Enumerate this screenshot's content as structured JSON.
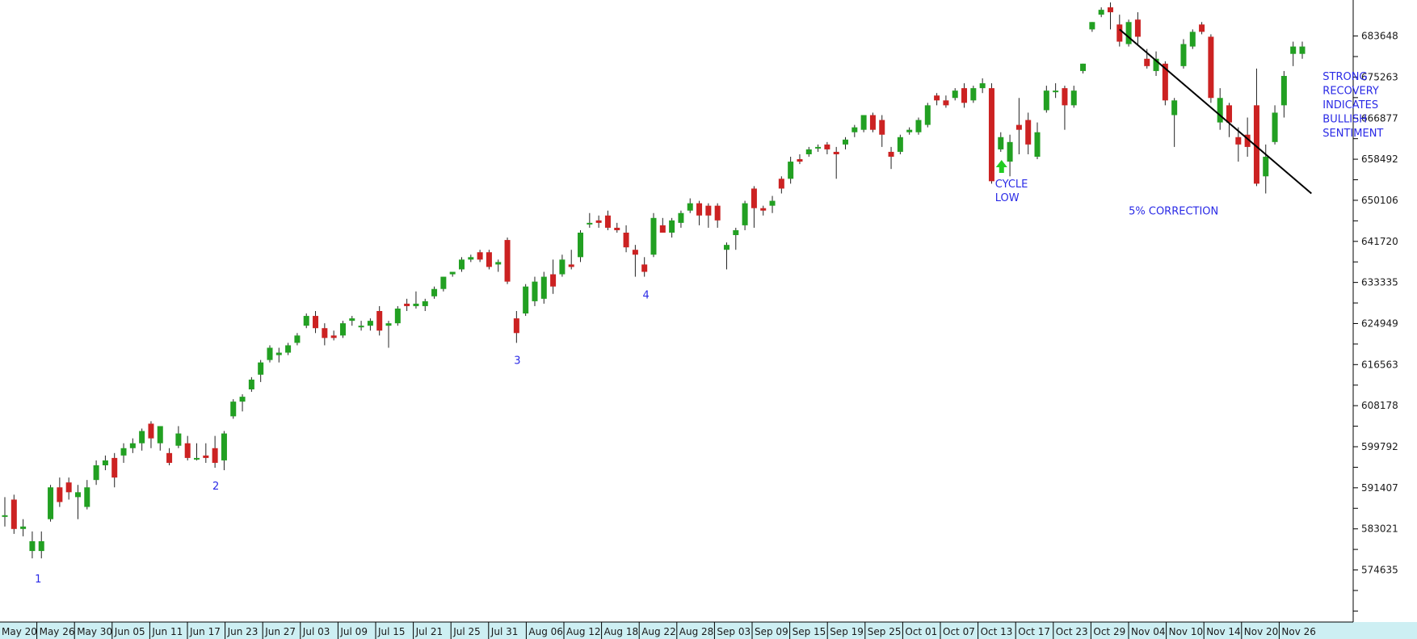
{
  "colors": {
    "background": "#ffffff",
    "up_candle": "#22a022",
    "down_candle": "#cc2222",
    "wick": "#222222",
    "axis": "#000000",
    "date_bar": "#cdeff3",
    "annotation_text": "#2a2ae6",
    "cycle_arrow": "#22cc22",
    "trendline": "#000000"
  },
  "chart_data": {
    "type": "candlestick",
    "title": "",
    "xlabel": "",
    "ylabel": "",
    "ylim": [
      564000,
      691000
    ],
    "y_ticks": [
      "683648",
      "675263",
      "666877",
      "658492",
      "650106",
      "641720",
      "633335",
      "624949",
      "616563",
      "608178",
      "599792",
      "591407",
      "583021",
      "574635"
    ],
    "x_ticks": [
      "May 20",
      "May 26",
      "May 30",
      "Jun 05",
      "Jun 11",
      "Jun 17",
      "Jun 23",
      "Jun 27",
      "Jul 03",
      "Jul 09",
      "Jul 15",
      "Jul 21",
      "Jul 25",
      "Jul 31",
      "Aug 06",
      "Aug 12",
      "Aug 18",
      "Aug 22",
      "Aug 28",
      "Sep 03",
      "Sep 09",
      "Sep 15",
      "Sep 19",
      "Sep 25",
      "Oct 01",
      "Oct 07",
      "Oct 13",
      "Oct 17",
      "Oct 23",
      "Oct 29",
      "Nov 04",
      "Nov 10",
      "Nov 14",
      "Nov 20",
      "Nov 26"
    ],
    "candles": [
      {
        "o": 585500,
        "h": 589500,
        "l": 583500,
        "c": 585800
      },
      {
        "o": 589000,
        "h": 590000,
        "l": 582000,
        "c": 583000
      },
      {
        "o": 583000,
        "h": 585000,
        "l": 581500,
        "c": 583500
      },
      {
        "o": 578500,
        "h": 582500,
        "l": 577000,
        "c": 580500
      },
      {
        "o": 578500,
        "h": 582500,
        "l": 577000,
        "c": 580500
      },
      {
        "o": 585000,
        "h": 592000,
        "l": 584500,
        "c": 591500
      },
      {
        "o": 591500,
        "h": 593500,
        "l": 587500,
        "c": 588500
      },
      {
        "o": 592500,
        "h": 593500,
        "l": 589000,
        "c": 590500
      },
      {
        "o": 589500,
        "h": 592000,
        "l": 585000,
        "c": 590500
      },
      {
        "o": 587500,
        "h": 593000,
        "l": 587000,
        "c": 591500
      },
      {
        "o": 593000,
        "h": 597000,
        "l": 592000,
        "c": 596000
      },
      {
        "o": 596000,
        "h": 598000,
        "l": 595000,
        "c": 597000
      },
      {
        "o": 597500,
        "h": 598500,
        "l": 591500,
        "c": 593500
      },
      {
        "o": 598000,
        "h": 600500,
        "l": 596500,
        "c": 599500
      },
      {
        "o": 599500,
        "h": 601500,
        "l": 598500,
        "c": 600500
      },
      {
        "o": 600500,
        "h": 603500,
        "l": 599000,
        "c": 603000
      },
      {
        "o": 604500,
        "h": 605000,
        "l": 599500,
        "c": 601500
      },
      {
        "o": 600500,
        "h": 604000,
        "l": 599000,
        "c": 604000
      },
      {
        "o": 598500,
        "h": 599500,
        "l": 596000,
        "c": 596500
      },
      {
        "o": 600000,
        "h": 604000,
        "l": 599500,
        "c": 602500
      },
      {
        "o": 600500,
        "h": 602000,
        "l": 597000,
        "c": 597500
      },
      {
        "o": 597500,
        "h": 600500,
        "l": 597000,
        "c": 597500
      },
      {
        "o": 598000,
        "h": 600500,
        "l": 596500,
        "c": 597500
      },
      {
        "o": 599500,
        "h": 602000,
        "l": 595500,
        "c": 596500
      },
      {
        "o": 597000,
        "h": 603000,
        "l": 595000,
        "c": 602500
      },
      {
        "o": 606000,
        "h": 609500,
        "l": 605500,
        "c": 609000
      },
      {
        "o": 609000,
        "h": 610500,
        "l": 607000,
        "c": 610000
      },
      {
        "o": 611500,
        "h": 614000,
        "l": 611000,
        "c": 613500
      },
      {
        "o": 614500,
        "h": 617500,
        "l": 613000,
        "c": 617000
      },
      {
        "o": 617500,
        "h": 620500,
        "l": 617000,
        "c": 620000
      },
      {
        "o": 618500,
        "h": 620000,
        "l": 617000,
        "c": 619000
      },
      {
        "o": 619000,
        "h": 621000,
        "l": 618500,
        "c": 620500
      },
      {
        "o": 621000,
        "h": 623000,
        "l": 620500,
        "c": 622500
      },
      {
        "o": 624500,
        "h": 627000,
        "l": 624000,
        "c": 626500
      },
      {
        "o": 626500,
        "h": 627500,
        "l": 623000,
        "c": 624000
      },
      {
        "o": 624000,
        "h": 625000,
        "l": 620500,
        "c": 622000
      },
      {
        "o": 622500,
        "h": 623500,
        "l": 621500,
        "c": 622000
      },
      {
        "o": 622500,
        "h": 625500,
        "l": 622000,
        "c": 625000
      },
      {
        "o": 625500,
        "h": 626500,
        "l": 624500,
        "c": 626000
      },
      {
        "o": 624500,
        "h": 625500,
        "l": 623500,
        "c": 624500
      },
      {
        "o": 624500,
        "h": 626000,
        "l": 623500,
        "c": 625500
      },
      {
        "o": 627500,
        "h": 628500,
        "l": 622500,
        "c": 623500
      },
      {
        "o": 624500,
        "h": 625500,
        "l": 620000,
        "c": 625000
      },
      {
        "o": 625000,
        "h": 628500,
        "l": 624500,
        "c": 628000
      },
      {
        "o": 629000,
        "h": 630000,
        "l": 627500,
        "c": 628500
      },
      {
        "o": 628500,
        "h": 631500,
        "l": 628000,
        "c": 629000
      },
      {
        "o": 628500,
        "h": 630000,
        "l": 627500,
        "c": 629500
      },
      {
        "o": 630500,
        "h": 632500,
        "l": 630000,
        "c": 632000
      },
      {
        "o": 632000,
        "h": 634500,
        "l": 631500,
        "c": 634500
      },
      {
        "o": 635000,
        "h": 635500,
        "l": 634500,
        "c": 635500
      },
      {
        "o": 636000,
        "h": 638500,
        "l": 635500,
        "c": 638000
      },
      {
        "o": 638000,
        "h": 639000,
        "l": 637500,
        "c": 638500
      },
      {
        "o": 639500,
        "h": 640000,
        "l": 637500,
        "c": 638000
      },
      {
        "o": 639500,
        "h": 640000,
        "l": 636000,
        "c": 636500
      },
      {
        "o": 637000,
        "h": 638000,
        "l": 635500,
        "c": 637500
      },
      {
        "o": 642000,
        "h": 642500,
        "l": 633000,
        "c": 633500
      },
      {
        "o": 626000,
        "h": 627500,
        "l": 621000,
        "c": 623000
      },
      {
        "o": 627000,
        "h": 633000,
        "l": 626500,
        "c": 632500
      },
      {
        "o": 629500,
        "h": 634500,
        "l": 628500,
        "c": 633500
      },
      {
        "o": 630000,
        "h": 635500,
        "l": 629000,
        "c": 634500
      },
      {
        "o": 635000,
        "h": 638000,
        "l": 631000,
        "c": 632500
      },
      {
        "o": 635000,
        "h": 639000,
        "l": 634500,
        "c": 638000
      },
      {
        "o": 637000,
        "h": 640000,
        "l": 636000,
        "c": 636500
      },
      {
        "o": 638500,
        "h": 644000,
        "l": 637500,
        "c": 643500
      },
      {
        "o": 645500,
        "h": 647500,
        "l": 644500,
        "c": 645500
      },
      {
        "o": 646000,
        "h": 647000,
        "l": 644500,
        "c": 645500
      },
      {
        "o": 647000,
        "h": 648000,
        "l": 644000,
        "c": 644500
      },
      {
        "o": 644500,
        "h": 645500,
        "l": 643500,
        "c": 644000
      },
      {
        "o": 643500,
        "h": 645000,
        "l": 639500,
        "c": 640500
      },
      {
        "o": 640000,
        "h": 641000,
        "l": 634500,
        "c": 639000
      },
      {
        "o": 637000,
        "h": 638500,
        "l": 634500,
        "c": 635500
      },
      {
        "o": 639000,
        "h": 647500,
        "l": 638500,
        "c": 646500
      },
      {
        "o": 645000,
        "h": 646500,
        "l": 643500,
        "c": 643500
      },
      {
        "o": 643500,
        "h": 646500,
        "l": 642500,
        "c": 646000
      },
      {
        "o": 645500,
        "h": 648000,
        "l": 644500,
        "c": 647500
      },
      {
        "o": 648000,
        "h": 650500,
        "l": 647500,
        "c": 649500
      },
      {
        "o": 649500,
        "h": 650000,
        "l": 645000,
        "c": 647000
      },
      {
        "o": 649000,
        "h": 649500,
        "l": 644500,
        "c": 647000
      },
      {
        "o": 649000,
        "h": 649500,
        "l": 644500,
        "c": 646000
      },
      {
        "o": 640000,
        "h": 641500,
        "l": 636000,
        "c": 641000
      },
      {
        "o": 643000,
        "h": 644500,
        "l": 640000,
        "c": 644000
      },
      {
        "o": 645000,
        "h": 650000,
        "l": 644000,
        "c": 649500
      },
      {
        "o": 652500,
        "h": 653000,
        "l": 644500,
        "c": 648500
      },
      {
        "o": 648500,
        "h": 649000,
        "l": 647000,
        "c": 648000
      },
      {
        "o": 649000,
        "h": 651000,
        "l": 647500,
        "c": 650000
      },
      {
        "o": 654500,
        "h": 655000,
        "l": 651500,
        "c": 652500
      },
      {
        "o": 654500,
        "h": 659000,
        "l": 653500,
        "c": 658000
      },
      {
        "o": 658500,
        "h": 659500,
        "l": 657500,
        "c": 658000
      },
      {
        "o": 659500,
        "h": 661000,
        "l": 659000,
        "c": 660500
      },
      {
        "o": 661000,
        "h": 661500,
        "l": 660000,
        "c": 661000
      },
      {
        "o": 661500,
        "h": 662000,
        "l": 659500,
        "c": 660500
      },
      {
        "o": 660000,
        "h": 661000,
        "l": 654500,
        "c": 659500
      },
      {
        "o": 661500,
        "h": 663000,
        "l": 660500,
        "c": 662500
      },
      {
        "o": 664000,
        "h": 665500,
        "l": 663000,
        "c": 665000
      },
      {
        "o": 664500,
        "h": 667500,
        "l": 664000,
        "c": 667500
      },
      {
        "o": 667500,
        "h": 668000,
        "l": 664000,
        "c": 664500
      },
      {
        "o": 666500,
        "h": 667500,
        "l": 661000,
        "c": 663500
      },
      {
        "o": 660000,
        "h": 661000,
        "l": 656500,
        "c": 659000
      },
      {
        "o": 660000,
        "h": 663500,
        "l": 659500,
        "c": 663000
      },
      {
        "o": 664000,
        "h": 665000,
        "l": 663500,
        "c": 664500
      },
      {
        "o": 664000,
        "h": 667000,
        "l": 663500,
        "c": 666500
      },
      {
        "o": 665500,
        "h": 670000,
        "l": 665000,
        "c": 669500
      },
      {
        "o": 671500,
        "h": 672000,
        "l": 669500,
        "c": 670500
      },
      {
        "o": 670500,
        "h": 671500,
        "l": 669000,
        "c": 669500
      },
      {
        "o": 671000,
        "h": 673000,
        "l": 670500,
        "c": 672500
      },
      {
        "o": 673000,
        "h": 674000,
        "l": 669000,
        "c": 670000
      },
      {
        "o": 670500,
        "h": 673500,
        "l": 670000,
        "c": 673000
      },
      {
        "o": 673000,
        "h": 675000,
        "l": 672000,
        "c": 674000
      },
      {
        "o": 673000,
        "h": 674000,
        "l": 653500,
        "c": 654000
      },
      {
        "o": 660500,
        "h": 664000,
        "l": 660000,
        "c": 663000
      },
      {
        "o": 658000,
        "h": 663500,
        "l": 655000,
        "c": 662000
      },
      {
        "o": 665500,
        "h": 671000,
        "l": 659500,
        "c": 664500
      },
      {
        "o": 666500,
        "h": 668000,
        "l": 659500,
        "c": 661500
      },
      {
        "o": 659000,
        "h": 666000,
        "l": 658500,
        "c": 664000
      },
      {
        "o": 668500,
        "h": 673500,
        "l": 668000,
        "c": 672500
      },
      {
        "o": 672500,
        "h": 674000,
        "l": 671000,
        "c": 672500
      },
      {
        "o": 673000,
        "h": 673500,
        "l": 664500,
        "c": 669500
      },
      {
        "o": 669500,
        "h": 673500,
        "l": 669000,
        "c": 672500
      },
      {
        "o": 676500,
        "h": 678000,
        "l": 676000,
        "c": 678000
      },
      {
        "o": 685000,
        "h": 686500,
        "l": 684500,
        "c": 686500
      },
      {
        "o": 688000,
        "h": 689500,
        "l": 687500,
        "c": 689000
      },
      {
        "o": 689500,
        "h": 690500,
        "l": 685000,
        "c": 688500
      },
      {
        "o": 686000,
        "h": 688000,
        "l": 681500,
        "c": 682500
      },
      {
        "o": 682000,
        "h": 687000,
        "l": 681500,
        "c": 686500
      },
      {
        "o": 687000,
        "h": 688500,
        "l": 682000,
        "c": 683500
      },
      {
        "o": 679000,
        "h": 681000,
        "l": 677000,
        "c": 677500
      },
      {
        "o": 676500,
        "h": 680500,
        "l": 675500,
        "c": 679000
      },
      {
        "o": 678000,
        "h": 678500,
        "l": 669500,
        "c": 670500
      },
      {
        "o": 667500,
        "h": 671000,
        "l": 661000,
        "c": 670500
      },
      {
        "o": 677500,
        "h": 683000,
        "l": 677000,
        "c": 682000
      },
      {
        "o": 681500,
        "h": 685000,
        "l": 681000,
        "c": 684500
      },
      {
        "o": 686000,
        "h": 686500,
        "l": 684000,
        "c": 684500
      },
      {
        "o": 683500,
        "h": 684000,
        "l": 670000,
        "c": 671000
      },
      {
        "o": 666000,
        "h": 673000,
        "l": 664500,
        "c": 671000
      },
      {
        "o": 669500,
        "h": 670000,
        "l": 663000,
        "c": 666000
      },
      {
        "o": 663000,
        "h": 665000,
        "l": 658000,
        "c": 661500
      },
      {
        "o": 663500,
        "h": 667000,
        "l": 659000,
        "c": 661000
      },
      {
        "o": 669500,
        "h": 677000,
        "l": 653000,
        "c": 653500
      },
      {
        "o": 655000,
        "h": 661500,
        "l": 651500,
        "c": 659000
      },
      {
        "o": 662000,
        "h": 669500,
        "l": 661500,
        "c": 668000
      },
      {
        "o": 669500,
        "h": 676500,
        "l": 667000,
        "c": 675500
      },
      {
        "o": 680000,
        "h": 682500,
        "l": 677500,
        "c": 681500
      },
      {
        "o": 680000,
        "h": 682500,
        "l": 679000,
        "c": 681500
      }
    ],
    "annotations": {
      "wave_1": "1",
      "wave_2": "2",
      "wave_3": "3",
      "wave_4": "4",
      "cycle_low_line1": "CYCLE",
      "cycle_low_line2": "LOW",
      "correction": "5% CORRECTION",
      "recovery_line1": "STRONG",
      "recovery_line2": "RECOVERY",
      "recovery_line3": "INDICATES",
      "recovery_line4": "BULLISH",
      "recovery_line5": "SENTIMENT"
    },
    "trendline": {
      "from": {
        "index": 122,
        "y": 685000
      },
      "to": {
        "index": 143,
        "y": 651500
      }
    },
    "grid": false,
    "legend": "none"
  }
}
